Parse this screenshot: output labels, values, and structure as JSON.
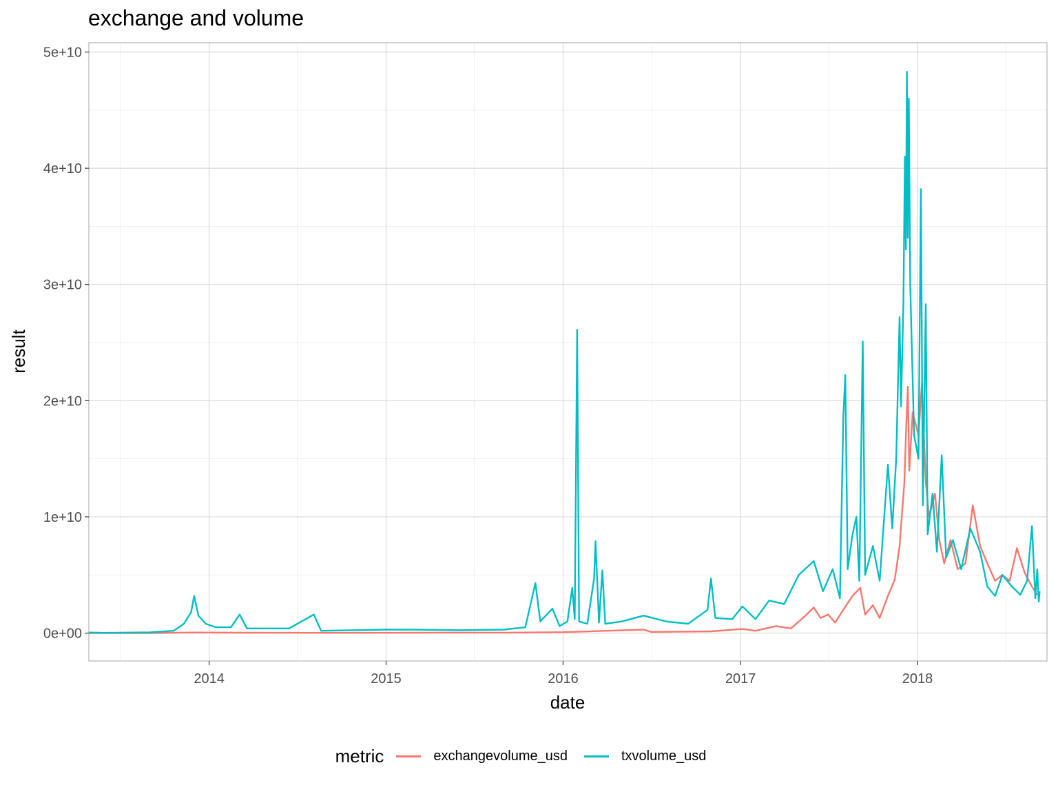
{
  "chart_data": {
    "type": "line",
    "title": "exchange and volume",
    "xlabel": "date",
    "ylabel": "result",
    "xlim": [
      "2013-04-28",
      "2018-09-25"
    ],
    "ylim": [
      -2400000000.0,
      50800000000.0
    ],
    "x_ticks": [
      "2014",
      "2015",
      "2016",
      "2017",
      "2018"
    ],
    "x_tick_dates": [
      "2014-01-01",
      "2015-01-01",
      "2016-01-01",
      "2017-01-01",
      "2018-01-01"
    ],
    "y_ticks": [
      0,
      10000000000.0,
      20000000000.0,
      30000000000.0,
      40000000000.0,
      50000000000.0
    ],
    "y_tick_labels": [
      "0e+00",
      "1e+10",
      "2e+10",
      "3e+10",
      "4e+10",
      "5e+10"
    ],
    "grid": true,
    "legend": {
      "title": "metric",
      "position": "bottom",
      "entries": [
        "exchangevolume_usd",
        "txvolume_usd"
      ]
    },
    "series": [
      {
        "name": "exchangevolume_usd",
        "color": "#F8766D",
        "points": [
          [
            "2013-04-28",
            0
          ],
          [
            "2013-09-01",
            0
          ],
          [
            "2013-12-01",
            50000000.0
          ],
          [
            "2014-03-01",
            30000000.0
          ],
          [
            "2014-09-01",
            20000000.0
          ],
          [
            "2015-03-01",
            30000000.0
          ],
          [
            "2015-09-01",
            40000000.0
          ],
          [
            "2016-01-01",
            80000000.0
          ],
          [
            "2016-06-15",
            300000000.0
          ],
          [
            "2016-07-01",
            100000000.0
          ],
          [
            "2016-11-01",
            150000000.0
          ],
          [
            "2017-01-05",
            350000000.0
          ],
          [
            "2017-02-01",
            200000000.0
          ],
          [
            "2017-03-15",
            600000000.0
          ],
          [
            "2017-04-15",
            400000000.0
          ],
          [
            "2017-05-15",
            1500000000.0
          ],
          [
            "2017-06-01",
            2200000000.0
          ],
          [
            "2017-06-15",
            1300000000.0
          ],
          [
            "2017-07-01",
            1600000000.0
          ],
          [
            "2017-07-15",
            900000000.0
          ],
          [
            "2017-08-01",
            2000000000.0
          ],
          [
            "2017-08-20",
            3200000000.0
          ],
          [
            "2017-09-05",
            3900000000.0
          ],
          [
            "2017-09-15",
            1600000000.0
          ],
          [
            "2017-10-01",
            2400000000.0
          ],
          [
            "2017-10-15",
            1300000000.0
          ],
          [
            "2017-11-01",
            3200000000.0
          ],
          [
            "2017-11-15",
            4600000000.0
          ],
          [
            "2017-11-25",
            7500000000.0
          ],
          [
            "2017-12-05",
            13000000000.0
          ],
          [
            "2017-12-08",
            17000000000.0
          ],
          [
            "2017-12-12",
            21200000000.0
          ],
          [
            "2017-12-15",
            14000000000.0
          ],
          [
            "2017-12-22",
            19000000000.0
          ],
          [
            "2018-01-03",
            17000000000.0
          ],
          [
            "2018-01-10",
            21500000000.0
          ],
          [
            "2018-01-18",
            13000000000.0
          ],
          [
            "2018-01-25",
            10000000000.0
          ],
          [
            "2018-02-06",
            12000000000.0
          ],
          [
            "2018-02-15",
            8000000000.0
          ],
          [
            "2018-02-25",
            6000000000.0
          ],
          [
            "2018-03-10",
            8000000000.0
          ],
          [
            "2018-03-25",
            5500000000.0
          ],
          [
            "2018-04-10",
            6000000000.0
          ],
          [
            "2018-04-25",
            11000000000.0
          ],
          [
            "2018-05-10",
            7500000000.0
          ],
          [
            "2018-05-25",
            6000000000.0
          ],
          [
            "2018-06-10",
            4500000000.0
          ],
          [
            "2018-06-25",
            5000000000.0
          ],
          [
            "2018-07-10",
            4500000000.0
          ],
          [
            "2018-07-25",
            7300000000.0
          ],
          [
            "2018-08-10",
            5200000000.0
          ],
          [
            "2018-08-25",
            4000000000.0
          ],
          [
            "2018-09-05",
            3300000000.0
          ]
        ]
      },
      {
        "name": "txvolume_usd",
        "color": "#00BFC4",
        "points": [
          [
            "2013-04-28",
            50000000.0
          ],
          [
            "2013-06-01",
            20000000.0
          ],
          [
            "2013-09-01",
            60000000.0
          ],
          [
            "2013-10-20",
            200000000.0
          ],
          [
            "2013-11-10",
            800000000.0
          ],
          [
            "2013-11-25",
            1800000000.0
          ],
          [
            "2013-12-01",
            3200000000.0
          ],
          [
            "2013-12-10",
            1500000000.0
          ],
          [
            "2013-12-25",
            800000000.0
          ],
          [
            "2014-01-15",
            500000000.0
          ],
          [
            "2014-02-15",
            500000000.0
          ],
          [
            "2014-03-05",
            1600000000.0
          ],
          [
            "2014-03-20",
            400000000.0
          ],
          [
            "2014-05-01",
            400000000.0
          ],
          [
            "2014-06-15",
            400000000.0
          ],
          [
            "2014-08-05",
            1600000000.0
          ],
          [
            "2014-08-20",
            200000000.0
          ],
          [
            "2014-11-01",
            250000000.0
          ],
          [
            "2015-01-01",
            300000000.0
          ],
          [
            "2015-03-01",
            300000000.0
          ],
          [
            "2015-06-01",
            250000000.0
          ],
          [
            "2015-09-01",
            300000000.0
          ],
          [
            "2015-10-15",
            500000000.0
          ],
          [
            "2015-11-05",
            4300000000.0
          ],
          [
            "2015-11-15",
            1000000000.0
          ],
          [
            "2015-12-10",
            2100000000.0
          ],
          [
            "2015-12-25",
            600000000.0
          ],
          [
            "2016-01-10",
            1000000000.0
          ],
          [
            "2016-01-20",
            3900000000.0
          ],
          [
            "2016-01-25",
            1200000000.0
          ],
          [
            "2016-01-30",
            26100000000.0
          ],
          [
            "2016-02-03",
            1000000000.0
          ],
          [
            "2016-02-20",
            800000000.0
          ],
          [
            "2016-03-05",
            4700000000.0
          ],
          [
            "2016-03-08",
            7900000000.0
          ],
          [
            "2016-03-15",
            900000000.0
          ],
          [
            "2016-03-22",
            5400000000.0
          ],
          [
            "2016-03-28",
            800000000.0
          ],
          [
            "2016-05-01",
            1000000000.0
          ],
          [
            "2016-06-15",
            1500000000.0
          ],
          [
            "2016-08-01",
            1000000000.0
          ],
          [
            "2016-09-15",
            800000000.0
          ],
          [
            "2016-10-25",
            2000000000.0
          ],
          [
            "2016-11-01",
            4700000000.0
          ],
          [
            "2016-11-10",
            1300000000.0
          ],
          [
            "2016-12-15",
            1200000000.0
          ],
          [
            "2017-01-05",
            2300000000.0
          ],
          [
            "2017-02-01",
            1200000000.0
          ],
          [
            "2017-03-01",
            2800000000.0
          ],
          [
            "2017-04-01",
            2500000000.0
          ],
          [
            "2017-05-01",
            5000000000.0
          ],
          [
            "2017-06-01",
            6200000000.0
          ],
          [
            "2017-06-20",
            3600000000.0
          ],
          [
            "2017-07-10",
            5500000000.0
          ],
          [
            "2017-07-25",
            3000000000.0
          ],
          [
            "2017-08-01",
            18600000000.0
          ],
          [
            "2017-08-05",
            22200000000.0
          ],
          [
            "2017-08-10",
            5500000000.0
          ],
          [
            "2017-08-20",
            8500000000.0
          ],
          [
            "2017-08-28",
            10000000000.0
          ],
          [
            "2017-09-03",
            4500000000.0
          ],
          [
            "2017-09-10",
            25100000000.0
          ],
          [
            "2017-09-15",
            5000000000.0
          ],
          [
            "2017-10-01",
            7500000000.0
          ],
          [
            "2017-10-15",
            4500000000.0
          ],
          [
            "2017-11-01",
            14500000000.0
          ],
          [
            "2017-11-10",
            9000000000.0
          ],
          [
            "2017-11-18",
            15000000000.0
          ],
          [
            "2017-11-25",
            27200000000.0
          ],
          [
            "2017-11-28",
            19500000000.0
          ],
          [
            "2017-12-03",
            28500000000.0
          ],
          [
            "2017-12-06",
            41000000000.0
          ],
          [
            "2017-12-08",
            33000000000.0
          ],
          [
            "2017-12-10",
            48300000000.0
          ],
          [
            "2017-12-12",
            34000000000.0
          ],
          [
            "2017-12-14",
            46000000000.0
          ],
          [
            "2017-12-17",
            30000000000.0
          ],
          [
            "2017-12-20",
            25000000000.0
          ],
          [
            "2017-12-25",
            17000000000.0
          ],
          [
            "2018-01-03",
            15000000000.0
          ],
          [
            "2018-01-08",
            38200000000.0
          ],
          [
            "2018-01-12",
            11000000000.0
          ],
          [
            "2018-01-18",
            28300000000.0
          ],
          [
            "2018-01-22",
            8500000000.0
          ],
          [
            "2018-02-01",
            12000000000.0
          ],
          [
            "2018-02-10",
            7000000000.0
          ],
          [
            "2018-02-20",
            15300000000.0
          ],
          [
            "2018-03-01",
            6500000000.0
          ],
          [
            "2018-03-15",
            8000000000.0
          ],
          [
            "2018-04-01",
            5500000000.0
          ],
          [
            "2018-04-20",
            9000000000.0
          ],
          [
            "2018-05-10",
            7000000000.0
          ],
          [
            "2018-05-25",
            4000000000.0
          ],
          [
            "2018-06-10",
            3200000000.0
          ],
          [
            "2018-06-25",
            5000000000.0
          ],
          [
            "2018-07-15",
            4000000000.0
          ],
          [
            "2018-08-01",
            3300000000.0
          ],
          [
            "2018-08-15",
            4500000000.0
          ],
          [
            "2018-08-25",
            9200000000.0
          ],
          [
            "2018-09-01",
            3000000000.0
          ],
          [
            "2018-09-05",
            5500000000.0
          ],
          [
            "2018-09-08",
            2700000000.0
          ],
          [
            "2018-09-10",
            3600000000.0
          ]
        ]
      }
    ]
  }
}
